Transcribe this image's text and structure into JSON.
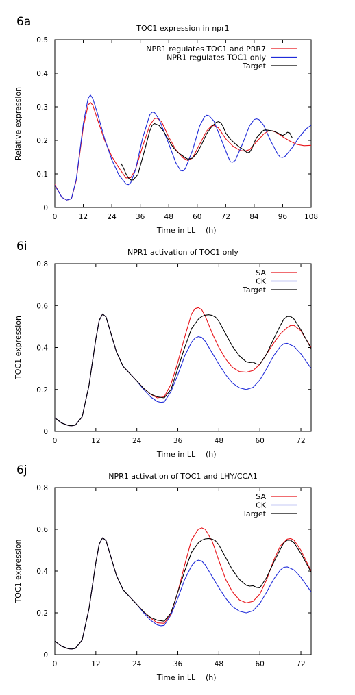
{
  "colors": {
    "red": "#e8141a",
    "blue": "#1f2bd9",
    "black": "#000000"
  },
  "chart_data": [
    {
      "panel_label": "6a",
      "type": "line",
      "title": "TOC1 expression in npr1",
      "xlabel": "Time in LL",
      "xlabel_unit": "h",
      "ylabel": "Relative expression",
      "xlim": [
        0,
        108
      ],
      "ylim": [
        0,
        0.5
      ],
      "xticks": [
        0,
        12,
        24,
        36,
        48,
        60,
        72,
        84,
        96,
        108
      ],
      "yticks": [
        0,
        0.1,
        0.2,
        0.3,
        0.4,
        0.5
      ],
      "ytick_labels": [
        "0",
        "0.1",
        "0.2",
        "0.3",
        "0.4",
        "0.5"
      ],
      "grid": false,
      "legend_position": "top-right",
      "series": [
        {
          "name": "NPR1 regulates TOC1 and PRR7",
          "color": "red",
          "x": [
            0,
            3,
            5,
            7,
            9,
            12,
            14,
            15,
            16,
            18,
            21,
            24,
            27,
            30,
            32,
            34,
            37,
            40,
            42,
            43,
            45,
            48,
            51,
            54,
            56,
            58,
            61,
            64,
            66,
            67,
            69,
            72,
            75,
            78,
            80,
            82,
            85,
            88,
            90,
            91,
            93,
            96,
            99,
            102,
            105,
            108
          ],
          "y": [
            0.068,
            0.03,
            0.022,
            0.026,
            0.08,
            0.24,
            0.305,
            0.313,
            0.305,
            0.262,
            0.2,
            0.152,
            0.118,
            0.088,
            0.089,
            0.113,
            0.182,
            0.245,
            0.265,
            0.266,
            0.256,
            0.21,
            0.172,
            0.148,
            0.14,
            0.147,
            0.188,
            0.228,
            0.243,
            0.244,
            0.237,
            0.205,
            0.183,
            0.17,
            0.168,
            0.172,
            0.196,
            0.219,
            0.228,
            0.229,
            0.225,
            0.211,
            0.198,
            0.188,
            0.184,
            0.185
          ]
        },
        {
          "name": "NPR1 regulates TOC1 only",
          "color": "blue",
          "x": [
            0,
            3,
            5,
            7,
            9,
            12,
            14,
            15,
            16,
            18,
            21,
            24,
            27,
            30,
            31,
            32,
            34,
            37,
            40,
            41,
            42,
            44,
            48,
            51,
            53,
            54,
            55,
            58,
            61,
            63,
            64,
            65,
            67,
            70,
            73,
            74,
            75,
            76,
            79,
            82,
            84,
            85,
            86,
            88,
            91,
            94,
            95,
            96,
            97,
            100,
            103,
            106,
            108
          ],
          "y": [
            0.066,
            0.03,
            0.022,
            0.026,
            0.083,
            0.25,
            0.325,
            0.335,
            0.325,
            0.28,
            0.205,
            0.142,
            0.097,
            0.07,
            0.068,
            0.074,
            0.112,
            0.207,
            0.276,
            0.284,
            0.283,
            0.262,
            0.19,
            0.133,
            0.11,
            0.109,
            0.116,
            0.17,
            0.242,
            0.27,
            0.275,
            0.273,
            0.258,
            0.205,
            0.151,
            0.136,
            0.135,
            0.14,
            0.188,
            0.243,
            0.262,
            0.264,
            0.262,
            0.245,
            0.198,
            0.158,
            0.15,
            0.149,
            0.152,
            0.178,
            0.21,
            0.235,
            0.245
          ]
        },
        {
          "name": "Target",
          "color": "black",
          "x": [
            28,
            29,
            30,
            31,
            32,
            33,
            35,
            38,
            40,
            41,
            42,
            44,
            46,
            48,
            50,
            52,
            54,
            55,
            56,
            58,
            60,
            62,
            64,
            66,
            68,
            69,
            70,
            71,
            72,
            74,
            76,
            78,
            80,
            81,
            82,
            83,
            84,
            85,
            87,
            88,
            89,
            90,
            92,
            94,
            95,
            96,
            97,
            98,
            99,
            100
          ],
          "y": [
            0.13,
            0.117,
            0.1,
            0.088,
            0.082,
            0.082,
            0.098,
            0.175,
            0.228,
            0.245,
            0.25,
            0.244,
            0.225,
            0.2,
            0.178,
            0.163,
            0.153,
            0.148,
            0.144,
            0.147,
            0.163,
            0.19,
            0.22,
            0.24,
            0.254,
            0.256,
            0.252,
            0.24,
            0.222,
            0.203,
            0.19,
            0.179,
            0.17,
            0.163,
            0.164,
            0.175,
            0.193,
            0.208,
            0.224,
            0.23,
            0.231,
            0.23,
            0.228,
            0.222,
            0.218,
            0.215,
            0.218,
            0.224,
            0.222,
            0.208
          ]
        }
      ]
    },
    {
      "panel_label": "6i",
      "type": "line",
      "title": "NPR1 activation of TOC1 only",
      "xlabel": "Time in LL",
      "xlabel_unit": "h",
      "ylabel": "TOC1 expression",
      "xlim": [
        0,
        75
      ],
      "ylim": [
        0,
        0.8
      ],
      "xticks": [
        0,
        12,
        24,
        36,
        48,
        60,
        72
      ],
      "yticks": [
        0,
        0.2,
        0.4,
        0.6,
        0.8
      ],
      "ytick_labels": [
        "0",
        "0.2",
        "0.4",
        "0.6",
        "0.8"
      ],
      "grid": false,
      "legend_position": "top-right",
      "series": [
        {
          "name": "SA",
          "color": "red",
          "x": [
            0,
            2,
            4,
            5,
            6,
            8,
            10,
            12,
            13,
            14,
            15,
            16,
            18,
            20,
            22,
            24,
            26,
            28,
            30,
            32,
            34,
            36,
            38,
            40,
            41,
            42,
            43,
            44,
            46,
            48,
            50,
            52,
            54,
            56,
            58,
            60,
            62,
            64,
            66,
            68,
            69,
            70,
            72,
            75
          ],
          "y": [
            0.065,
            0.04,
            0.028,
            0.027,
            0.03,
            0.07,
            0.22,
            0.44,
            0.53,
            0.56,
            0.545,
            0.49,
            0.38,
            0.31,
            0.275,
            0.24,
            0.205,
            0.178,
            0.16,
            0.165,
            0.225,
            0.33,
            0.45,
            0.56,
            0.585,
            0.59,
            0.58,
            0.55,
            0.47,
            0.4,
            0.345,
            0.305,
            0.285,
            0.282,
            0.29,
            0.32,
            0.37,
            0.42,
            0.465,
            0.495,
            0.505,
            0.505,
            0.48,
            0.4
          ]
        },
        {
          "name": "CK",
          "color": "blue",
          "x": [
            0,
            2,
            4,
            5,
            6,
            8,
            10,
            12,
            13,
            14,
            15,
            16,
            18,
            20,
            22,
            24,
            26,
            28,
            30,
            31,
            32,
            34,
            36,
            38,
            40,
            41,
            42,
            43,
            44,
            46,
            48,
            50,
            52,
            54,
            56,
            58,
            60,
            62,
            64,
            66,
            67,
            68,
            70,
            72,
            75
          ],
          "y": [
            0.065,
            0.04,
            0.028,
            0.027,
            0.03,
            0.07,
            0.22,
            0.44,
            0.53,
            0.56,
            0.545,
            0.49,
            0.38,
            0.31,
            0.275,
            0.24,
            0.2,
            0.165,
            0.142,
            0.138,
            0.14,
            0.19,
            0.27,
            0.36,
            0.425,
            0.445,
            0.452,
            0.448,
            0.43,
            0.375,
            0.32,
            0.27,
            0.23,
            0.208,
            0.2,
            0.21,
            0.245,
            0.3,
            0.36,
            0.405,
            0.418,
            0.42,
            0.405,
            0.37,
            0.3
          ]
        },
        {
          "name": "Target",
          "color": "black",
          "x": [
            0,
            2,
            4,
            5,
            6,
            8,
            10,
            12,
            13,
            14,
            15,
            16,
            18,
            20,
            22,
            24,
            26,
            28,
            30,
            32,
            34,
            36,
            38,
            40,
            42,
            43,
            44,
            45,
            46,
            47,
            48,
            50,
            52,
            54,
            56,
            57,
            58,
            59,
            60,
            62,
            64,
            66,
            67,
            68,
            69,
            70,
            72,
            75
          ],
          "y": [
            0.065,
            0.04,
            0.028,
            0.027,
            0.03,
            0.07,
            0.22,
            0.44,
            0.53,
            0.56,
            0.545,
            0.49,
            0.38,
            0.31,
            0.275,
            0.24,
            0.205,
            0.178,
            0.165,
            0.16,
            0.2,
            0.3,
            0.4,
            0.49,
            0.535,
            0.548,
            0.554,
            0.556,
            0.553,
            0.545,
            0.525,
            0.465,
            0.405,
            0.36,
            0.332,
            0.328,
            0.33,
            0.322,
            0.32,
            0.37,
            0.44,
            0.505,
            0.535,
            0.548,
            0.548,
            0.535,
            0.485,
            0.395
          ]
        }
      ]
    },
    {
      "panel_label": "6j",
      "type": "line",
      "title": "NPR1 activation of TOC1 and LHY/CCA1",
      "xlabel": "Time in LL",
      "xlabel_unit": "h",
      "ylabel": "TOC1 expression",
      "xlim": [
        0,
        75
      ],
      "ylim": [
        0,
        0.8
      ],
      "xticks": [
        0,
        12,
        24,
        36,
        48,
        60,
        72
      ],
      "yticks": [
        0,
        0.2,
        0.4,
        0.6,
        0.8
      ],
      "ytick_labels": [
        "0",
        "0.2",
        "0.4",
        "0.6",
        "0.8"
      ],
      "grid": false,
      "legend_position": "top-right",
      "series": [
        {
          "name": "SA",
          "color": "red",
          "x": [
            0,
            2,
            4,
            5,
            6,
            8,
            10,
            12,
            13,
            14,
            15,
            16,
            18,
            20,
            22,
            24,
            26,
            28,
            30,
            32,
            34,
            36,
            38,
            40,
            42,
            43,
            44,
            46,
            48,
            50,
            52,
            54,
            56,
            58,
            60,
            62,
            64,
            66,
            68,
            69,
            70,
            72,
            75
          ],
          "y": [
            0.065,
            0.04,
            0.028,
            0.027,
            0.03,
            0.07,
            0.22,
            0.44,
            0.53,
            0.56,
            0.545,
            0.49,
            0.38,
            0.31,
            0.275,
            0.24,
            0.205,
            0.175,
            0.152,
            0.15,
            0.195,
            0.3,
            0.43,
            0.55,
            0.6,
            0.607,
            0.6,
            0.545,
            0.45,
            0.36,
            0.3,
            0.262,
            0.248,
            0.255,
            0.29,
            0.36,
            0.45,
            0.52,
            0.553,
            0.556,
            0.548,
            0.5,
            0.4
          ]
        },
        {
          "name": "CK",
          "color": "blue",
          "x": [
            0,
            2,
            4,
            5,
            6,
            8,
            10,
            12,
            13,
            14,
            15,
            16,
            18,
            20,
            22,
            24,
            26,
            28,
            30,
            31,
            32,
            34,
            36,
            38,
            40,
            41,
            42,
            43,
            44,
            46,
            48,
            50,
            52,
            54,
            56,
            58,
            60,
            62,
            64,
            66,
            67,
            68,
            70,
            72,
            75
          ],
          "y": [
            0.065,
            0.04,
            0.028,
            0.027,
            0.03,
            0.07,
            0.22,
            0.44,
            0.53,
            0.56,
            0.545,
            0.49,
            0.38,
            0.31,
            0.275,
            0.24,
            0.2,
            0.165,
            0.142,
            0.138,
            0.14,
            0.19,
            0.27,
            0.36,
            0.425,
            0.445,
            0.452,
            0.448,
            0.43,
            0.375,
            0.32,
            0.27,
            0.23,
            0.208,
            0.2,
            0.21,
            0.245,
            0.3,
            0.36,
            0.405,
            0.418,
            0.42,
            0.405,
            0.37,
            0.3
          ]
        },
        {
          "name": "Target",
          "color": "black",
          "x": [
            0,
            2,
            4,
            5,
            6,
            8,
            10,
            12,
            13,
            14,
            15,
            16,
            18,
            20,
            22,
            24,
            26,
            28,
            30,
            32,
            34,
            36,
            38,
            40,
            42,
            43,
            44,
            45,
            46,
            47,
            48,
            50,
            52,
            54,
            56,
            57,
            58,
            59,
            60,
            62,
            64,
            66,
            67,
            68,
            69,
            70,
            72,
            75
          ],
          "y": [
            0.065,
            0.04,
            0.028,
            0.027,
            0.03,
            0.07,
            0.22,
            0.44,
            0.53,
            0.56,
            0.545,
            0.49,
            0.38,
            0.31,
            0.275,
            0.24,
            0.205,
            0.178,
            0.165,
            0.16,
            0.2,
            0.3,
            0.4,
            0.49,
            0.535,
            0.548,
            0.554,
            0.556,
            0.553,
            0.545,
            0.525,
            0.465,
            0.405,
            0.36,
            0.332,
            0.328,
            0.33,
            0.322,
            0.32,
            0.37,
            0.44,
            0.505,
            0.535,
            0.548,
            0.548,
            0.535,
            0.485,
            0.395
          ]
        }
      ]
    }
  ]
}
